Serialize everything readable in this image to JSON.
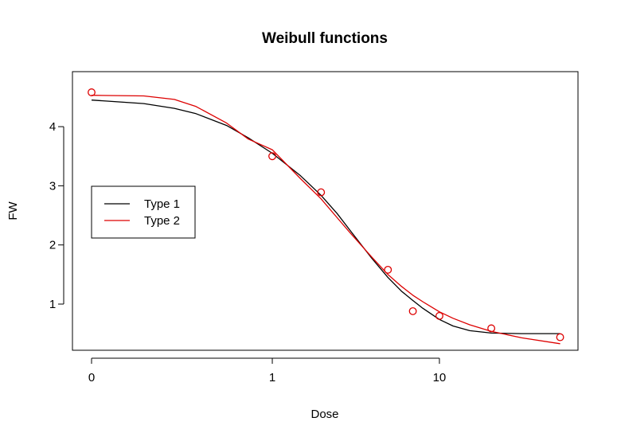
{
  "chart_data": {
    "type": "line",
    "title": "Weibull functions",
    "xlabel": "Dose",
    "ylabel": "FW",
    "x_scale": "log-with-zero",
    "x_ticks": [
      {
        "value": 0,
        "label": "0"
      },
      {
        "value": 1,
        "label": "1"
      },
      {
        "value": 10,
        "label": "10"
      }
    ],
    "y_ticks": [
      {
        "value": 1,
        "label": "1"
      },
      {
        "value": 2,
        "label": "2"
      },
      {
        "value": 3,
        "label": "3"
      },
      {
        "value": 4,
        "label": "4"
      }
    ],
    "ylim": [
      0.2,
      4.8
    ],
    "grid": false,
    "legend_position": "left",
    "points": {
      "color": "#dd0000",
      "x": [
        0,
        1,
        2,
        5,
        7,
        10,
        20,
        50
      ],
      "y": [
        4.58,
        3.5,
        2.89,
        1.58,
        0.88,
        0.8,
        0.59,
        0.44
      ]
    },
    "series": [
      {
        "name": "Type 1",
        "color": "#000000",
        "x": [
          0,
          0.1,
          0.2,
          0.3,
          0.5,
          0.7,
          1,
          1.5,
          2,
          2.5,
          3,
          4,
          5,
          6,
          7,
          8,
          10,
          12,
          15,
          20,
          30,
          50
        ],
        "y": [
          4.45,
          4.39,
          4.31,
          4.22,
          4.02,
          3.81,
          3.55,
          3.17,
          2.84,
          2.53,
          2.24,
          1.78,
          1.45,
          1.22,
          1.06,
          0.93,
          0.74,
          0.63,
          0.55,
          0.51,
          0.5,
          0.5
        ]
      },
      {
        "name": "Type 2",
        "color": "#dd0000",
        "x": [
          0,
          0.1,
          0.2,
          0.3,
          0.5,
          0.7,
          1,
          1.5,
          2,
          2.5,
          3,
          4,
          5,
          6,
          7,
          8,
          10,
          12,
          15,
          20,
          30,
          50
        ],
        "y": [
          4.53,
          4.52,
          4.46,
          4.34,
          4.06,
          3.79,
          3.61,
          3.12,
          2.78,
          2.46,
          2.2,
          1.8,
          1.5,
          1.3,
          1.15,
          1.04,
          0.87,
          0.76,
          0.65,
          0.54,
          0.43,
          0.33
        ]
      }
    ]
  }
}
